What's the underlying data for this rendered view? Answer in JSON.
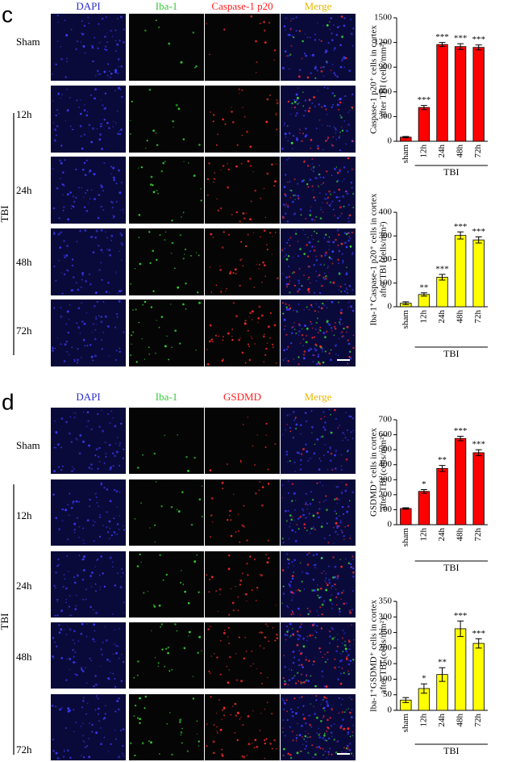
{
  "panels": [
    {
      "label": "c",
      "columns": [
        "DAPI",
        "Iba-1",
        "Caspase-1 p20",
        "Merge"
      ],
      "rows": [
        "Sham",
        "12h",
        "24h",
        "48h",
        "72h"
      ],
      "group": "TBI"
    },
    {
      "label": "d",
      "columns": [
        "DAPI",
        "Iba-1",
        "GSDMD",
        "Merge"
      ],
      "rows": [
        "Sham",
        "12h",
        "24h",
        "48h",
        "72h"
      ],
      "group": "TBI"
    }
  ],
  "chart_data": [
    {
      "type": "bar",
      "ylabel": [
        "Caspase-1 p20⁺ cells in cortex",
        "after TBI (cells/mm²)"
      ],
      "categories": [
        "sham",
        "12h",
        "24h",
        "48h",
        "72h"
      ],
      "values": [
        50,
        410,
        1175,
        1150,
        1140
      ],
      "errors": [
        8,
        25,
        25,
        35,
        30
      ],
      "annotations": [
        null,
        "***",
        "***",
        "***",
        "***"
      ],
      "group_label": "TBI",
      "color": "#ff0000",
      "ylim": [
        0,
        1500
      ],
      "yticks": [
        0,
        300,
        600,
        900,
        1200,
        1500
      ]
    },
    {
      "type": "bar",
      "ylabel": [
        "Iba-1⁺Caspase-1 p20⁺ cells in cortex",
        "after TBI (cells/mm²)"
      ],
      "categories": [
        "sham",
        "12h",
        "24h",
        "48h",
        "72h"
      ],
      "values": [
        15,
        52,
        125,
        302,
        283
      ],
      "errors": [
        6,
        7,
        12,
        15,
        13
      ],
      "annotations": [
        null,
        "**",
        "***",
        "***",
        "***"
      ],
      "group_label": "TBI",
      "color": "#ffff00",
      "ylim": [
        0,
        400
      ],
      "yticks": [
        0,
        100,
        200,
        300,
        400
      ]
    },
    {
      "type": "bar",
      "ylabel": [
        "GSDMD⁺ cells in cortex",
        "after TBI (cells/mm²)"
      ],
      "categories": [
        "sham",
        "12h",
        "24h",
        "48h",
        "72h"
      ],
      "values": [
        108,
        222,
        375,
        575,
        480
      ],
      "errors": [
        5,
        12,
        20,
        15,
        20
      ],
      "annotations": [
        null,
        "*",
        "**",
        "***",
        "***"
      ],
      "group_label": "TBI",
      "color": "#ff0000",
      "ylim": [
        0,
        700
      ],
      "yticks": [
        0,
        100,
        200,
        300,
        400,
        500,
        600,
        700
      ]
    },
    {
      "type": "bar",
      "ylabel": [
        "Iba-1⁺GSDMD⁺ cells in cortex",
        "after TBI (cells/mm²)"
      ],
      "categories": [
        "sham",
        "12h",
        "24h",
        "48h",
        "72h"
      ],
      "values": [
        33,
        70,
        115,
        262,
        215
      ],
      "errors": [
        8,
        15,
        22,
        25,
        15
      ],
      "annotations": [
        null,
        "*",
        "**",
        "***",
        "***"
      ],
      "group_label": "TBI",
      "color": "#ffff00",
      "ylim": [
        0,
        350
      ],
      "yticks": [
        0,
        50,
        100,
        150,
        200,
        250,
        300,
        350
      ]
    }
  ]
}
